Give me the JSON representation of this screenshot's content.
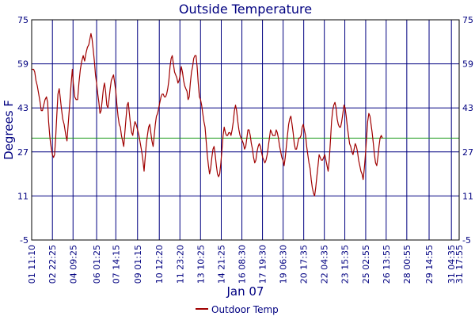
{
  "chart_data": {
    "type": "line",
    "title": "Outside Temperature",
    "xlabel": "Jan 07",
    "ylabel": "Degrees F",
    "ylim": [
      -5,
      75
    ],
    "yticks": [
      -5,
      11,
      27,
      43,
      59,
      75
    ],
    "xlim": [
      0,
      30.28
    ],
    "xticks": [
      {
        "x": 0.0,
        "label": "01 11:10"
      },
      {
        "x": 1.47,
        "label": "02 22:25"
      },
      {
        "x": 2.93,
        "label": "04 09:25"
      },
      {
        "x": 4.6,
        "label": "06 01:25"
      },
      {
        "x": 5.96,
        "label": "07 14:15"
      },
      {
        "x": 7.5,
        "label": "09 01:15"
      },
      {
        "x": 9.04,
        "label": "10 12:20"
      },
      {
        "x": 10.5,
        "label": "11 23:20"
      },
      {
        "x": 11.96,
        "label": "13 10:25"
      },
      {
        "x": 13.43,
        "label": "14 21:25"
      },
      {
        "x": 14.89,
        "label": "16 08:30"
      },
      {
        "x": 16.35,
        "label": "17 19:30"
      },
      {
        "x": 17.81,
        "label": "19 06:30"
      },
      {
        "x": 19.27,
        "label": "20 17:35"
      },
      {
        "x": 20.73,
        "label": "22 04:35"
      },
      {
        "x": 22.18,
        "label": "23 15:35"
      },
      {
        "x": 23.66,
        "label": "25 02:55"
      },
      {
        "x": 25.11,
        "label": "26 13:55"
      },
      {
        "x": 26.57,
        "label": "28 00:55"
      },
      {
        "x": 28.15,
        "label": "29 14:55"
      },
      {
        "x": 29.73,
        "label": "31 04:35"
      },
      {
        "x": 30.28,
        "label": "31 17:55"
      }
    ],
    "reference_line": {
      "y": 32,
      "color": "#1a9a1a"
    },
    "grid": true,
    "legend_position": "bottom-center",
    "series": [
      {
        "name": "Outdoor Temp",
        "color": "#a00000",
        "points": [
          [
            0.0,
            57
          ],
          [
            0.14,
            57
          ],
          [
            0.22,
            56
          ],
          [
            0.3,
            53
          ],
          [
            0.4,
            51
          ],
          [
            0.5,
            48
          ],
          [
            0.6,
            45
          ],
          [
            0.68,
            42
          ],
          [
            0.76,
            42
          ],
          [
            0.85,
            44
          ],
          [
            0.95,
            46
          ],
          [
            1.05,
            47
          ],
          [
            1.13,
            45
          ],
          [
            1.2,
            38
          ],
          [
            1.28,
            33
          ],
          [
            1.34,
            30
          ],
          [
            1.4,
            28
          ],
          [
            1.47,
            26
          ],
          [
            1.55,
            25
          ],
          [
            1.62,
            26
          ],
          [
            1.7,
            32
          ],
          [
            1.78,
            40
          ],
          [
            1.86,
            48
          ],
          [
            1.95,
            50
          ],
          [
            2.02,
            47
          ],
          [
            2.1,
            43
          ],
          [
            2.2,
            39
          ],
          [
            2.3,
            37
          ],
          [
            2.42,
            33
          ],
          [
            2.5,
            31
          ],
          [
            2.6,
            38
          ],
          [
            2.7,
            45
          ],
          [
            2.8,
            52
          ],
          [
            2.88,
            57
          ],
          [
            2.95,
            52
          ],
          [
            3.05,
            47
          ],
          [
            3.15,
            46
          ],
          [
            3.25,
            46
          ],
          [
            3.35,
            52
          ],
          [
            3.45,
            57
          ],
          [
            3.55,
            60
          ],
          [
            3.65,
            62
          ],
          [
            3.75,
            60
          ],
          [
            3.85,
            63
          ],
          [
            3.95,
            65
          ],
          [
            4.05,
            66
          ],
          [
            4.12,
            68
          ],
          [
            4.2,
            70
          ],
          [
            4.28,
            68
          ],
          [
            4.36,
            64
          ],
          [
            4.44,
            60
          ],
          [
            4.52,
            55
          ],
          [
            4.6,
            52
          ],
          [
            4.68,
            48
          ],
          [
            4.76,
            45
          ],
          [
            4.84,
            41
          ],
          [
            4.92,
            42
          ],
          [
            5.0,
            46
          ],
          [
            5.08,
            50
          ],
          [
            5.16,
            52
          ],
          [
            5.24,
            49
          ],
          [
            5.32,
            44
          ],
          [
            5.4,
            43
          ],
          [
            5.48,
            46
          ],
          [
            5.56,
            50
          ],
          [
            5.64,
            53
          ],
          [
            5.72,
            54
          ],
          [
            5.8,
            55
          ],
          [
            5.88,
            52
          ],
          [
            5.96,
            49
          ],
          [
            6.04,
            44
          ],
          [
            6.12,
            40
          ],
          [
            6.2,
            37
          ],
          [
            6.28,
            36
          ],
          [
            6.36,
            33
          ],
          [
            6.44,
            31
          ],
          [
            6.52,
            29
          ],
          [
            6.6,
            34
          ],
          [
            6.68,
            39
          ],
          [
            6.76,
            44
          ],
          [
            6.84,
            45
          ],
          [
            6.92,
            41
          ],
          [
            7.0,
            37
          ],
          [
            7.08,
            34
          ],
          [
            7.16,
            33
          ],
          [
            7.24,
            36
          ],
          [
            7.32,
            38
          ],
          [
            7.4,
            37
          ],
          [
            7.5,
            35
          ],
          [
            7.6,
            33
          ],
          [
            7.7,
            30
          ],
          [
            7.8,
            27
          ],
          [
            7.88,
            24
          ],
          [
            7.96,
            20
          ],
          [
            8.04,
            25
          ],
          [
            8.12,
            30
          ],
          [
            8.2,
            33
          ],
          [
            8.28,
            36
          ],
          [
            8.36,
            37
          ],
          [
            8.44,
            34
          ],
          [
            8.52,
            31
          ],
          [
            8.6,
            29
          ],
          [
            8.68,
            33
          ],
          [
            8.76,
            37
          ],
          [
            8.84,
            40
          ],
          [
            8.92,
            41
          ],
          [
            9.0,
            43
          ],
          [
            9.08,
            45
          ],
          [
            9.16,
            47
          ],
          [
            9.24,
            48
          ],
          [
            9.32,
            48
          ],
          [
            9.4,
            47
          ],
          [
            9.48,
            47
          ],
          [
            9.56,
            48
          ],
          [
            9.64,
            50
          ],
          [
            9.72,
            53
          ],
          [
            9.8,
            58
          ],
          [
            9.88,
            61
          ],
          [
            9.96,
            62
          ],
          [
            10.04,
            59
          ],
          [
            10.12,
            56
          ],
          [
            10.2,
            55
          ],
          [
            10.28,
            54
          ],
          [
            10.36,
            52
          ],
          [
            10.44,
            53
          ],
          [
            10.52,
            55
          ],
          [
            10.6,
            58
          ],
          [
            10.68,
            56
          ],
          [
            10.76,
            53
          ],
          [
            10.84,
            51
          ],
          [
            10.92,
            50
          ],
          [
            11.0,
            49
          ],
          [
            11.08,
            46
          ],
          [
            11.16,
            47
          ],
          [
            11.24,
            52
          ],
          [
            11.32,
            56
          ],
          [
            11.4,
            58
          ],
          [
            11.48,
            61
          ],
          [
            11.56,
            62
          ],
          [
            11.64,
            62
          ],
          [
            11.72,
            58
          ],
          [
            11.8,
            52
          ],
          [
            11.88,
            47
          ],
          [
            11.96,
            46
          ],
          [
            12.04,
            44
          ],
          [
            12.12,
            41
          ],
          [
            12.2,
            38
          ],
          [
            12.28,
            36
          ],
          [
            12.36,
            31
          ],
          [
            12.44,
            26
          ],
          [
            12.52,
            22
          ],
          [
            12.6,
            19
          ],
          [
            12.68,
            21
          ],
          [
            12.76,
            25
          ],
          [
            12.84,
            28
          ],
          [
            12.92,
            29
          ],
          [
            13.0,
            26
          ],
          [
            13.08,
            22
          ],
          [
            13.16,
            19
          ],
          [
            13.24,
            18
          ],
          [
            13.32,
            19
          ],
          [
            13.4,
            23
          ],
          [
            13.48,
            28
          ],
          [
            13.56,
            33
          ],
          [
            13.64,
            36
          ],
          [
            13.72,
            34
          ],
          [
            13.8,
            33
          ],
          [
            13.88,
            33
          ],
          [
            13.96,
            34
          ],
          [
            14.04,
            34
          ],
          [
            14.12,
            33
          ],
          [
            14.2,
            35
          ],
          [
            14.28,
            38
          ],
          [
            14.36,
            42
          ],
          [
            14.44,
            44
          ],
          [
            14.52,
            42
          ],
          [
            14.6,
            38
          ],
          [
            14.68,
            35
          ],
          [
            14.76,
            33
          ],
          [
            14.84,
            32
          ],
          [
            14.92,
            31
          ],
          [
            15.0,
            30
          ],
          [
            15.08,
            28
          ],
          [
            15.16,
            29
          ],
          [
            15.24,
            32
          ],
          [
            15.32,
            35
          ],
          [
            15.4,
            35
          ],
          [
            15.48,
            33
          ],
          [
            15.56,
            30
          ],
          [
            15.64,
            28
          ],
          [
            15.72,
            25
          ],
          [
            15.8,
            23
          ],
          [
            15.88,
            24
          ],
          [
            15.96,
            27
          ],
          [
            16.04,
            29
          ],
          [
            16.12,
            30
          ],
          [
            16.2,
            29
          ],
          [
            16.28,
            27
          ],
          [
            16.36,
            25
          ],
          [
            16.44,
            24
          ],
          [
            16.52,
            23
          ],
          [
            16.6,
            24
          ],
          [
            16.68,
            26
          ],
          [
            16.76,
            29
          ],
          [
            16.84,
            32
          ],
          [
            16.92,
            35
          ],
          [
            17.0,
            34
          ],
          [
            17.08,
            33
          ],
          [
            17.16,
            33
          ],
          [
            17.24,
            33
          ],
          [
            17.32,
            35
          ],
          [
            17.4,
            34
          ],
          [
            17.48,
            32
          ],
          [
            17.56,
            29
          ],
          [
            17.64,
            27
          ],
          [
            17.72,
            25
          ],
          [
            17.8,
            24
          ],
          [
            17.88,
            22
          ],
          [
            17.96,
            25
          ],
          [
            18.04,
            29
          ],
          [
            18.12,
            33
          ],
          [
            18.2,
            37
          ],
          [
            18.28,
            39
          ],
          [
            18.36,
            40
          ],
          [
            18.44,
            37
          ],
          [
            18.52,
            34
          ],
          [
            18.6,
            30
          ],
          [
            18.68,
            28
          ],
          [
            18.76,
            28
          ],
          [
            18.84,
            30
          ],
          [
            18.92,
            32
          ],
          [
            19.0,
            32
          ],
          [
            19.08,
            33
          ],
          [
            19.16,
            36
          ],
          [
            19.24,
            37
          ],
          [
            19.32,
            35
          ],
          [
            19.4,
            33
          ],
          [
            19.48,
            29
          ],
          [
            19.56,
            26
          ],
          [
            19.64,
            23
          ],
          [
            19.72,
            21
          ],
          [
            19.8,
            17
          ],
          [
            19.88,
            14
          ],
          [
            19.96,
            12
          ],
          [
            20.04,
            11
          ],
          [
            20.12,
            14
          ],
          [
            20.2,
            18
          ],
          [
            20.28,
            22
          ],
          [
            20.36,
            26
          ],
          [
            20.44,
            25
          ],
          [
            20.52,
            24
          ],
          [
            20.6,
            24
          ],
          [
            20.68,
            25
          ],
          [
            20.76,
            26
          ],
          [
            20.84,
            24
          ],
          [
            20.92,
            22
          ],
          [
            21.0,
            20
          ],
          [
            21.08,
            24
          ],
          [
            21.16,
            31
          ],
          [
            21.24,
            38
          ],
          [
            21.32,
            42
          ],
          [
            21.4,
            44
          ],
          [
            21.48,
            45
          ],
          [
            21.56,
            43
          ],
          [
            21.64,
            39
          ],
          [
            21.72,
            37
          ],
          [
            21.8,
            36
          ],
          [
            21.88,
            36
          ],
          [
            21.96,
            38
          ],
          [
            22.04,
            41
          ],
          [
            22.12,
            44
          ],
          [
            22.2,
            43
          ],
          [
            22.28,
            40
          ],
          [
            22.36,
            36
          ],
          [
            22.44,
            33
          ],
          [
            22.52,
            30
          ],
          [
            22.6,
            29
          ],
          [
            22.68,
            27
          ],
          [
            22.76,
            26
          ],
          [
            22.84,
            28
          ],
          [
            22.92,
            30
          ],
          [
            23.0,
            29
          ],
          [
            23.08,
            27
          ],
          [
            23.16,
            24
          ],
          [
            23.24,
            22
          ],
          [
            23.32,
            20
          ],
          [
            23.4,
            19
          ],
          [
            23.48,
            17
          ],
          [
            23.56,
            21
          ],
          [
            23.64,
            26
          ],
          [
            23.72,
            32
          ],
          [
            23.8,
            38
          ],
          [
            23.88,
            41
          ],
          [
            23.96,
            40
          ],
          [
            24.04,
            37
          ],
          [
            24.12,
            34
          ],
          [
            24.2,
            30
          ],
          [
            24.28,
            26
          ],
          [
            24.36,
            23
          ],
          [
            24.44,
            22
          ],
          [
            24.52,
            25
          ],
          [
            24.6,
            29
          ],
          [
            24.68,
            32
          ],
          [
            24.76,
            33
          ],
          [
            24.84,
            32
          ]
        ]
      }
    ]
  }
}
